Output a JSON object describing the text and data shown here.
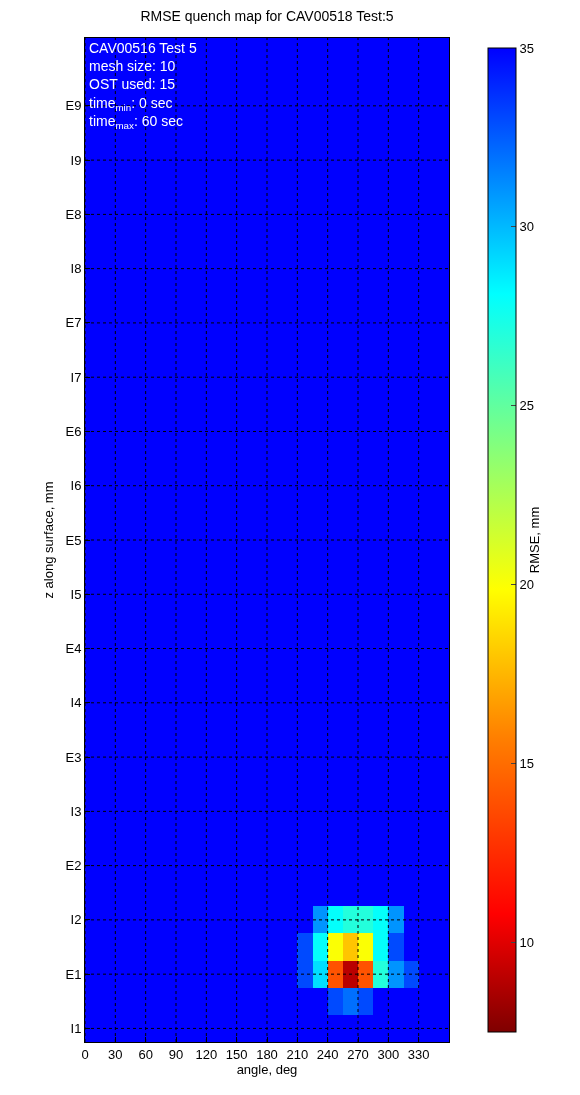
{
  "chart_data": {
    "type": "heatmap",
    "title": "RMSE quench map for CAV00518 Test:5",
    "xlabel": "angle, deg",
    "ylabel": "z along surface, mm",
    "clabel": "RMSE, mm",
    "annotations": [
      "CAV00516 Test 5\nmesh size: 10\nOST used: 15\ntime$_{min}$: 0 sec\ntime$_{max}$: 60 sec"
    ],
    "x": [
      7.5,
      22.5,
      37.5,
      52.5,
      67.5,
      82.5,
      97.5,
      112.5,
      127.5,
      142.5,
      157.5,
      172.5,
      187.5,
      202.5,
      217.5,
      232.5,
      247.5,
      262.5,
      277.5,
      292.5,
      307.5,
      322.5,
      337.5,
      352.5
    ],
    "y_categories": [
      null,
      null,
      "E9",
      null,
      "I9",
      null,
      "E8",
      null,
      "I8",
      null,
      "E7",
      null,
      "I7",
      null,
      "E6",
      null,
      "I6",
      null,
      "E5",
      null,
      "I5",
      null,
      "E4",
      null,
      "I4",
      null,
      "E3",
      null,
      "I3",
      null,
      "E2",
      null,
      "I2",
      null,
      "E1",
      null,
      "I1"
    ],
    "cells": [
      [
        35,
        35,
        35,
        35,
        35,
        35,
        35,
        35,
        35,
        35,
        35,
        35,
        35,
        35,
        35,
        35,
        35,
        35,
        35,
        35,
        35,
        35,
        35,
        35
      ],
      [
        35,
        35,
        35,
        35,
        35,
        35,
        35,
        35,
        35,
        35,
        35,
        35,
        35,
        35,
        35,
        35,
        35,
        35,
        35,
        35,
        35,
        35,
        35,
        35
      ],
      [
        35,
        35,
        35,
        35,
        35,
        35,
        35,
        35,
        35,
        35,
        35,
        35,
        35,
        35,
        35,
        35,
        35,
        35,
        35,
        35,
        35,
        35,
        35,
        35
      ],
      [
        35,
        35,
        35,
        35,
        35,
        35,
        35,
        35,
        35,
        35,
        35,
        35,
        35,
        35,
        35,
        35,
        35,
        35,
        35,
        35,
        35,
        35,
        35,
        35
      ],
      [
        35,
        35,
        35,
        35,
        35,
        35,
        35,
        35,
        35,
        35,
        35,
        35,
        35,
        35,
        35,
        35,
        35,
        35,
        35,
        35,
        35,
        35,
        35,
        35
      ],
      [
        35,
        35,
        35,
        35,
        35,
        35,
        35,
        35,
        35,
        35,
        35,
        35,
        35,
        35,
        35,
        35,
        35,
        35,
        35,
        35,
        35,
        35,
        35,
        35
      ],
      [
        35,
        35,
        35,
        35,
        35,
        35,
        35,
        35,
        35,
        35,
        35,
        35,
        35,
        35,
        35,
        35,
        35,
        35,
        35,
        35,
        35,
        35,
        35,
        35
      ],
      [
        35,
        35,
        35,
        35,
        35,
        35,
        35,
        35,
        35,
        35,
        35,
        35,
        35,
        35,
        35,
        35,
        35,
        35,
        35,
        35,
        35,
        35,
        35,
        35
      ],
      [
        35,
        35,
        35,
        35,
        35,
        35,
        35,
        35,
        35,
        35,
        35,
        35,
        35,
        35,
        35,
        35,
        35,
        35,
        35,
        35,
        35,
        35,
        35,
        35
      ],
      [
        35,
        35,
        35,
        35,
        35,
        35,
        35,
        35,
        35,
        35,
        35,
        35,
        35,
        35,
        35,
        35,
        35,
        35,
        35,
        35,
        35,
        35,
        35,
        35
      ],
      [
        35,
        35,
        35,
        35,
        35,
        35,
        35,
        35,
        35,
        35,
        35,
        35,
        35,
        35,
        35,
        35,
        35,
        35,
        35,
        35,
        35,
        35,
        35,
        35
      ],
      [
        35,
        35,
        35,
        35,
        35,
        35,
        35,
        35,
        35,
        35,
        35,
        35,
        35,
        35,
        35,
        35,
        35,
        35,
        35,
        35,
        35,
        35,
        35,
        35
      ],
      [
        35,
        35,
        35,
        35,
        35,
        35,
        35,
        35,
        35,
        35,
        35,
        35,
        35,
        35,
        35,
        35,
        35,
        35,
        35,
        35,
        35,
        35,
        35,
        35
      ],
      [
        35,
        35,
        35,
        35,
        35,
        35,
        35,
        35,
        35,
        35,
        35,
        35,
        35,
        35,
        35,
        35,
        35,
        35,
        35,
        35,
        35,
        35,
        35,
        35
      ],
      [
        35,
        35,
        35,
        35,
        35,
        35,
        35,
        35,
        35,
        35,
        35,
        35,
        35,
        35,
        35,
        35,
        35,
        35,
        35,
        35,
        35,
        35,
        35,
        35
      ],
      [
        35,
        35,
        35,
        35,
        35,
        35,
        35,
        35,
        35,
        35,
        35,
        35,
        35,
        35,
        35,
        35,
        35,
        35,
        35,
        35,
        35,
        35,
        35,
        35
      ],
      [
        35,
        35,
        35,
        35,
        35,
        35,
        35,
        35,
        35,
        35,
        35,
        35,
        35,
        35,
        35,
        35,
        35,
        35,
        35,
        35,
        35,
        35,
        35,
        35
      ],
      [
        35,
        35,
        35,
        35,
        35,
        35,
        35,
        35,
        35,
        35,
        35,
        35,
        35,
        35,
        35,
        35,
        35,
        35,
        35,
        35,
        35,
        35,
        35,
        35
      ],
      [
        35,
        35,
        35,
        35,
        35,
        35,
        35,
        35,
        35,
        35,
        35,
        35,
        35,
        35,
        35,
        35,
        35,
        35,
        35,
        35,
        35,
        35,
        35,
        35
      ],
      [
        35,
        35,
        35,
        35,
        35,
        35,
        35,
        35,
        35,
        35,
        35,
        35,
        35,
        35,
        35,
        35,
        35,
        35,
        35,
        35,
        35,
        35,
        35,
        35
      ],
      [
        35,
        35,
        35,
        35,
        35,
        35,
        35,
        35,
        35,
        35,
        35,
        35,
        35,
        35,
        35,
        35,
        35,
        35,
        35,
        35,
        35,
        35,
        35,
        35
      ],
      [
        35,
        35,
        35,
        35,
        35,
        35,
        35,
        35,
        35,
        35,
        35,
        35,
        35,
        35,
        35,
        35,
        35,
        35,
        35,
        35,
        35,
        35,
        35,
        35
      ],
      [
        35,
        35,
        35,
        35,
        35,
        35,
        35,
        35,
        35,
        35,
        35,
        35,
        35,
        35,
        35,
        35,
        35,
        35,
        35,
        35,
        35,
        35,
        35,
        35
      ],
      [
        35,
        35,
        35,
        35,
        35,
        35,
        35,
        35,
        35,
        35,
        35,
        35,
        35,
        35,
        35,
        35,
        35,
        35,
        35,
        35,
        35,
        35,
        35,
        35
      ],
      [
        35,
        35,
        35,
        35,
        35,
        35,
        35,
        35,
        35,
        35,
        35,
        35,
        35,
        35,
        35,
        35,
        35,
        35,
        35,
        35,
        35,
        35,
        35,
        35
      ],
      [
        35,
        35,
        35,
        35,
        35,
        35,
        35,
        35,
        35,
        35,
        35,
        35,
        35,
        35,
        35,
        35,
        35,
        35,
        35,
        35,
        35,
        35,
        35,
        35
      ],
      [
        35,
        35,
        35,
        35,
        35,
        35,
        35,
        35,
        35,
        35,
        35,
        35,
        35,
        35,
        35,
        35,
        35,
        35,
        35,
        35,
        35,
        35,
        35,
        35
      ],
      [
        35,
        35,
        35,
        35,
        35,
        35,
        35,
        35,
        35,
        35,
        35,
        35,
        35,
        35,
        35,
        35,
        35,
        35,
        35,
        35,
        35,
        35,
        35,
        35
      ],
      [
        35,
        35,
        35,
        35,
        35,
        35,
        35,
        35,
        35,
        35,
        35,
        35,
        35,
        35,
        35,
        35,
        35,
        35,
        35,
        35,
        35,
        35,
        35,
        35
      ],
      [
        35,
        35,
        35,
        35,
        35,
        35,
        35,
        35,
        35,
        35,
        35,
        35,
        35,
        35,
        35,
        35,
        35,
        35,
        35,
        35,
        35,
        35,
        35,
        35
      ],
      [
        35,
        35,
        35,
        35,
        35,
        35,
        35,
        35,
        35,
        35,
        35,
        35,
        35,
        35,
        35,
        35,
        35,
        35,
        35,
        35,
        35,
        35,
        35,
        35
      ],
      [
        35,
        35,
        35,
        35,
        35,
        35,
        35,
        35,
        35,
        35,
        35,
        35,
        35,
        35,
        35,
        35,
        35,
        35,
        35,
        35,
        35,
        35,
        35,
        35
      ],
      [
        35,
        35,
        35,
        35,
        35,
        35,
        35,
        35,
        35,
        35,
        35,
        35,
        35,
        35,
        35,
        31,
        28,
        27,
        27,
        28,
        31,
        35,
        35,
        35
      ],
      [
        35,
        35,
        35,
        35,
        35,
        35,
        35,
        35,
        35,
        35,
        35,
        35,
        35,
        35,
        33,
        28,
        20,
        18,
        20,
        28,
        33,
        35,
        35,
        35
      ],
      [
        35,
        35,
        35,
        35,
        35,
        35,
        35,
        35,
        35,
        35,
        35,
        35,
        35,
        35,
        33,
        29,
        14,
        9,
        14,
        27,
        31,
        33,
        35,
        35
      ],
      [
        35,
        35,
        35,
        35,
        35,
        35,
        35,
        35,
        35,
        35,
        35,
        35,
        35,
        35,
        35,
        35,
        33,
        32,
        33,
        35,
        35,
        35,
        35,
        35
      ],
      [
        35,
        35,
        35,
        35,
        35,
        35,
        35,
        35,
        35,
        35,
        35,
        35,
        35,
        35,
        35,
        35,
        35,
        35,
        35,
        35,
        35,
        35,
        35,
        35
      ]
    ],
    "clim": [
      7.5,
      35
    ],
    "cticks": [
      10,
      15,
      20,
      25,
      30,
      35
    ],
    "xlim": [
      0,
      360
    ],
    "xticks": [
      0,
      30,
      60,
      90,
      120,
      150,
      180,
      210,
      240,
      270,
      300,
      330
    ],
    "grid": true
  }
}
